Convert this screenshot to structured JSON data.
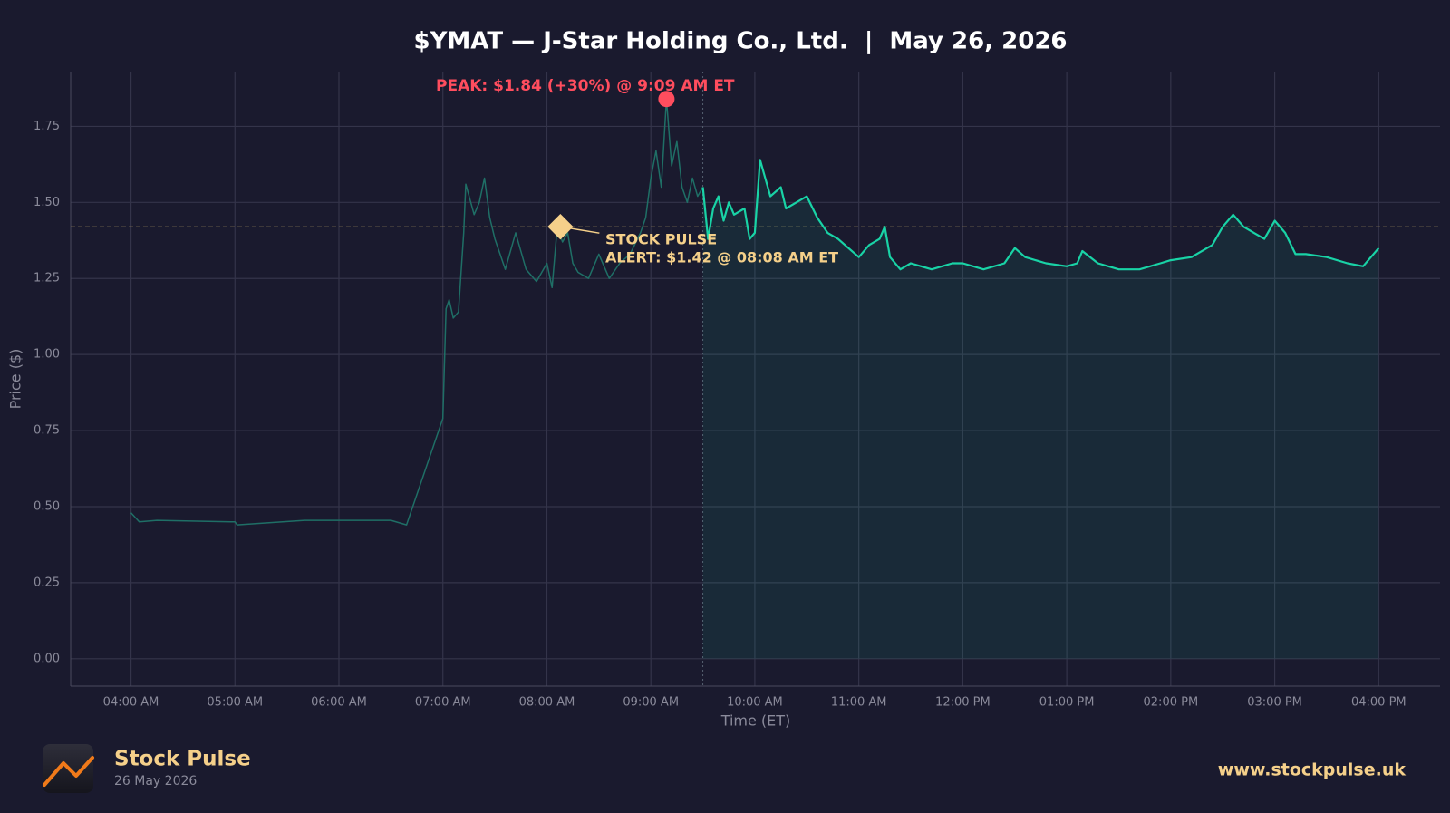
{
  "chart_data": {
    "type": "line",
    "title": "$YMAT — J-Star Holding Co., Ltd.  |  May 26, 2026",
    "x_label": "Time (ET)",
    "y_label": "Price ($)",
    "xlim": [
      3.42,
      16.59
    ],
    "ylim": [
      -0.09,
      1.93
    ],
    "xticks": [
      {
        "value": 4,
        "label": "04:00 AM"
      },
      {
        "value": 5,
        "label": "05:00 AM"
      },
      {
        "value": 6,
        "label": "06:00 AM"
      },
      {
        "value": 7,
        "label": "07:00 AM"
      },
      {
        "value": 8,
        "label": "08:00 AM"
      },
      {
        "value": 9,
        "label": "09:00 AM"
      },
      {
        "value": 10,
        "label": "10:00 AM"
      },
      {
        "value": 11,
        "label": "11:00 AM"
      },
      {
        "value": 12,
        "label": "12:00 PM"
      },
      {
        "value": 13,
        "label": "01:00 PM"
      },
      {
        "value": 14,
        "label": "02:00 PM"
      },
      {
        "value": 15,
        "label": "03:00 PM"
      },
      {
        "value": 16,
        "label": "04:00 PM"
      }
    ],
    "yticks": [
      {
        "value": 0,
        "label": "0.00"
      },
      {
        "value": 0.25,
        "label": "0.25"
      },
      {
        "value": 0.5,
        "label": "0.50"
      },
      {
        "value": 0.75,
        "label": "0.75"
      },
      {
        "value": 1,
        "label": "1.00"
      },
      {
        "value": 1.25,
        "label": "1.25"
      },
      {
        "value": 1.5,
        "label": "1.50"
      },
      {
        "value": 1.75,
        "label": "1.75"
      }
    ],
    "grid": true,
    "series": [
      {
        "color": "#1f6f66",
        "width": 1.5,
        "fill": false,
        "x": [
          4.0,
          4.08,
          4.25,
          5.0,
          5.02,
          5.67,
          6.5,
          6.65,
          7.0,
          7.03,
          7.06,
          7.1,
          7.15,
          7.2,
          7.22,
          7.3,
          7.35,
          7.4,
          7.45,
          7.5,
          7.6,
          7.7,
          7.8,
          7.9,
          8.0,
          8.05,
          8.1,
          8.15,
          8.2,
          8.25,
          8.3,
          8.4,
          8.5,
          8.6,
          8.7,
          8.8,
          8.9,
          8.95,
          9.0,
          9.05,
          9.1,
          9.15,
          9.2,
          9.25,
          9.3,
          9.35,
          9.4,
          9.45,
          9.5
        ],
        "values": [
          0.48,
          0.45,
          0.455,
          0.45,
          0.44,
          0.455,
          0.455,
          0.44,
          0.79,
          1.15,
          1.18,
          1.12,
          1.14,
          1.4,
          1.56,
          1.46,
          1.5,
          1.58,
          1.45,
          1.38,
          1.28,
          1.4,
          1.28,
          1.24,
          1.3,
          1.22,
          1.42,
          1.37,
          1.4,
          1.3,
          1.27,
          1.25,
          1.33,
          1.25,
          1.3,
          1.33,
          1.4,
          1.45,
          1.58,
          1.67,
          1.55,
          1.84,
          1.62,
          1.7,
          1.55,
          1.5,
          1.58,
          1.52,
          1.55
        ]
      },
      {
        "color": "#19d3a6",
        "width": 2.2,
        "fill": true,
        "x": [
          9.5,
          9.55,
          9.6,
          9.65,
          9.7,
          9.75,
          9.8,
          9.9,
          9.95,
          10.0,
          10.05,
          10.1,
          10.15,
          10.25,
          10.3,
          10.4,
          10.5,
          10.6,
          10.7,
          10.8,
          10.9,
          11.0,
          11.1,
          11.2,
          11.25,
          11.3,
          11.4,
          11.5,
          11.7,
          11.9,
          12.0,
          12.2,
          12.4,
          12.5,
          12.6,
          12.8,
          13.0,
          13.1,
          13.15,
          13.3,
          13.5,
          13.7,
          13.9,
          14.0,
          14.2,
          14.4,
          14.5,
          14.6,
          14.7,
          14.8,
          14.9,
          15.0,
          15.1,
          15.2,
          15.3,
          15.5,
          15.7,
          15.85,
          16.0
        ],
        "values": [
          1.55,
          1.38,
          1.48,
          1.52,
          1.44,
          1.5,
          1.46,
          1.48,
          1.38,
          1.4,
          1.64,
          1.58,
          1.52,
          1.55,
          1.48,
          1.5,
          1.52,
          1.45,
          1.4,
          1.38,
          1.35,
          1.32,
          1.36,
          1.38,
          1.42,
          1.32,
          1.28,
          1.3,
          1.28,
          1.3,
          1.3,
          1.28,
          1.3,
          1.35,
          1.32,
          1.3,
          1.29,
          1.3,
          1.34,
          1.3,
          1.28,
          1.28,
          1.3,
          1.31,
          1.32,
          1.36,
          1.42,
          1.46,
          1.42,
          1.4,
          1.38,
          1.44,
          1.4,
          1.33,
          1.33,
          1.32,
          1.3,
          1.29,
          1.35
        ]
      }
    ],
    "session_start": 9.5,
    "peak": {
      "x": 9.15,
      "y": 1.84,
      "color": "#ff4d5e",
      "label": "PEAK: $1.84 (+30%) @ 9:09 AM ET"
    },
    "alert": {
      "x": 8.13,
      "y": 1.42,
      "color": "#f5d08a",
      "label_lines": [
        "STOCK PULSE",
        "ALERT: $1.42 @ 08:08 AM ET"
      ]
    }
  },
  "footer": {
    "brand": "Stock Pulse",
    "date": "26 May 2026",
    "url": "www.stockpulse.uk"
  }
}
